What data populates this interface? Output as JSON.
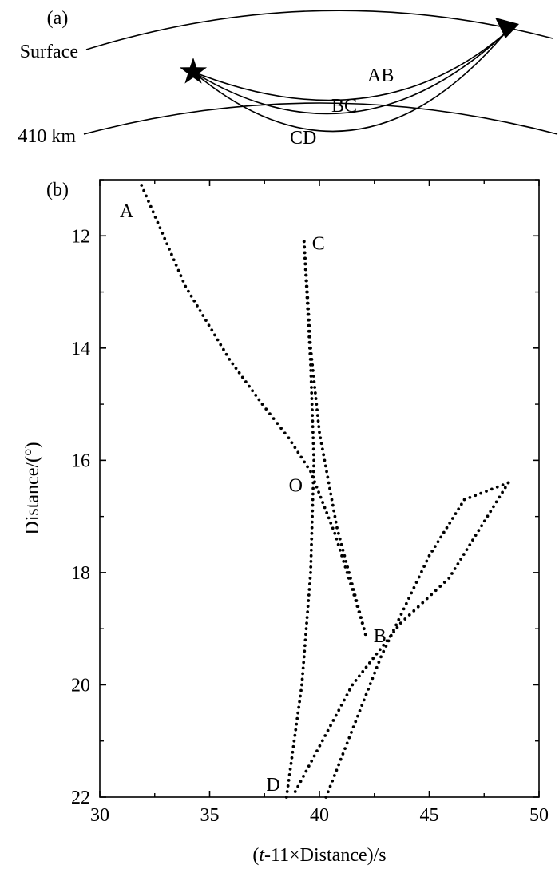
{
  "panel_a": {
    "label": "(a)",
    "surface_label": "Surface",
    "depth_label": "410 km",
    "ray_labels": [
      "AB",
      "BC",
      "CD"
    ],
    "source_icon": "star-icon",
    "station_icon": "inverted-triangle-icon"
  },
  "chart_data": {
    "type": "scatter",
    "panel_label": "(b)",
    "xlabel_italic": "t",
    "xlabel_rest": "-11×Distance)/s",
    "xlabel_open": "(",
    "ylabel": "Distance/(°)",
    "xlim": [
      30,
      50
    ],
    "ylim": [
      11,
      22
    ],
    "y_inverted": true,
    "x_ticks": [
      30,
      35,
      40,
      45,
      50
    ],
    "y_ticks": [
      12,
      14,
      16,
      18,
      20,
      22
    ],
    "grid": false,
    "branches": [
      {
        "segment": "AB",
        "points": [
          [
            31.9,
            11.1
          ],
          [
            33.9,
            12.9
          ],
          [
            35.9,
            14.2
          ],
          [
            37.4,
            15.0
          ],
          [
            38.6,
            15.6
          ],
          [
            39.6,
            16.2
          ],
          [
            40.7,
            17.3
          ],
          [
            41.5,
            18.3
          ],
          [
            42.1,
            19.1
          ]
        ]
      },
      {
        "segment": "BC",
        "points": [
          [
            42.1,
            19.1
          ],
          [
            40.8,
            17.2
          ],
          [
            40.0,
            15.5
          ],
          [
            39.6,
            14.0
          ],
          [
            39.45,
            13.0
          ],
          [
            39.3,
            12.1
          ]
        ]
      },
      {
        "segment": "CD",
        "points": [
          [
            39.3,
            12.1
          ],
          [
            39.6,
            14.3
          ],
          [
            39.75,
            16.0
          ],
          [
            39.6,
            18.0
          ],
          [
            39.2,
            20.0
          ],
          [
            38.5,
            22.0
          ]
        ]
      },
      {
        "segment": "D-tail-1",
        "points": [
          [
            38.9,
            21.9
          ],
          [
            41.5,
            20.0
          ],
          [
            43.7,
            18.9
          ],
          [
            45.9,
            18.1
          ],
          [
            48.6,
            16.4
          ]
        ]
      },
      {
        "segment": "D-tail-2",
        "points": [
          [
            40.3,
            22.0
          ],
          [
            42.8,
            19.5
          ],
          [
            45.0,
            17.7
          ],
          [
            46.6,
            16.7
          ],
          [
            48.6,
            16.4
          ]
        ]
      }
    ],
    "point_labels": [
      {
        "text": "A",
        "x": 31.9,
        "y": 11.1
      },
      {
        "text": "C",
        "x": 39.3,
        "y": 12.1
      },
      {
        "text": "O",
        "x": 39.6,
        "y": 16.2
      },
      {
        "text": "B",
        "x": 42.1,
        "y": 19.1
      },
      {
        "text": "D",
        "x": 38.5,
        "y": 22.0
      }
    ]
  }
}
